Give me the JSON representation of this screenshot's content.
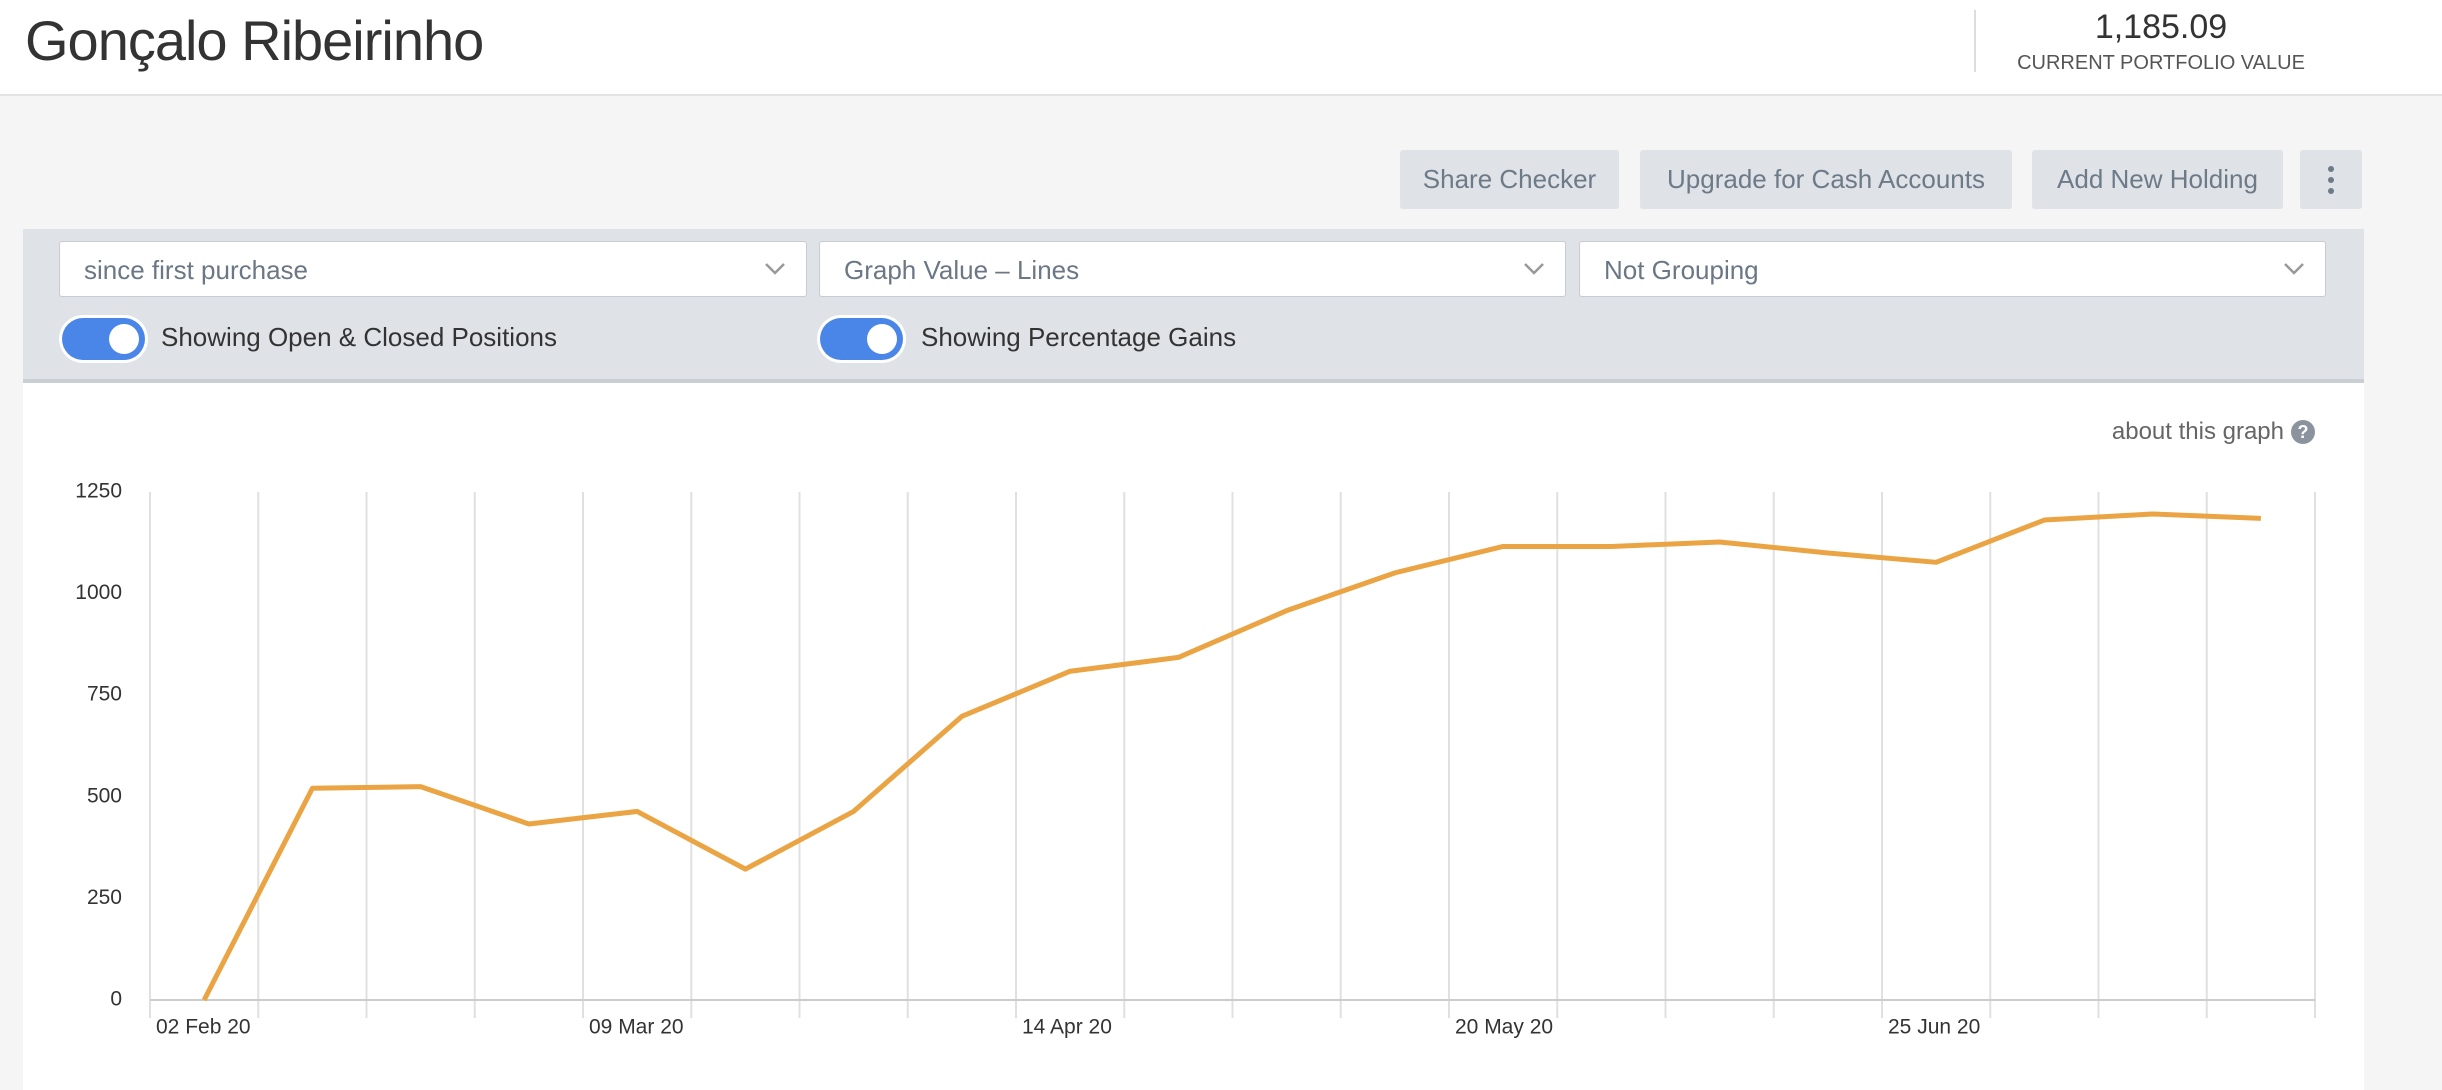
{
  "header": {
    "name": "Gonçalo Ribeirinho",
    "portfolio_value": "1,185.09",
    "portfolio_label": "CURRENT PORTFOLIO VALUE"
  },
  "buttons": [
    "Share Checker",
    "Upgrade for Cash Accounts",
    "Add New Holding"
  ],
  "filters": [
    "since first purchase",
    "Graph Value – Lines",
    "Not Grouping"
  ],
  "toggles": [
    "Showing Open & Closed Positions",
    "Showing Percentage Gains"
  ],
  "about_link": "about this graph",
  "chart_data": {
    "type": "line",
    "categories": [
      "02 Feb 20",
      null,
      null,
      null,
      "09 Mar 20",
      null,
      null,
      null,
      "14 Apr 20",
      null,
      null,
      null,
      "20 May 20",
      null,
      null,
      null,
      "25 Jun 20",
      null,
      null,
      null
    ],
    "values": [
      0,
      521,
      525,
      433,
      464,
      322,
      464,
      698,
      809,
      843,
      958,
      1051,
      1116,
      1116,
      1127,
      1100,
      1077,
      1181,
      1196,
      1185
    ],
    "color": "#eba443",
    "ylim": [
      0,
      1250
    ],
    "yticks": [
      0,
      250,
      500,
      750,
      1000,
      1250
    ],
    "grid": true
  }
}
